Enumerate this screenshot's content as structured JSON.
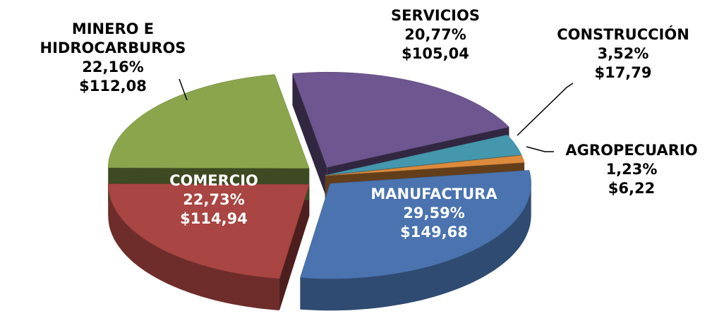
{
  "chart_data": {
    "type": "pie",
    "categories": [
      "MANUFACTURA",
      "COMERCIO",
      "MINERO E HIDROCARBUROS",
      "SERVICIOS",
      "CONSTRUCCIÓN",
      "AGROPECUARIO"
    ],
    "values": [
      29.59,
      22.73,
      22.16,
      20.77,
      3.52,
      1.23
    ],
    "value_labels": [
      "29,59%",
      "22,73%",
      "22,16%",
      "20,77%",
      "3,52%",
      "1,23%"
    ],
    "amounts": [
      149.68,
      114.94,
      112.08,
      105.04,
      17.79,
      6.22
    ],
    "amount_labels": [
      "$149,68",
      "$114,94",
      "$112,08",
      "$105,04",
      "$17,79",
      "$6,22"
    ],
    "colors": [
      "#4a73b0",
      "#a94542",
      "#8aa54b",
      "#6e5690",
      "#4497ad",
      "#dc8a3c"
    ]
  }
}
